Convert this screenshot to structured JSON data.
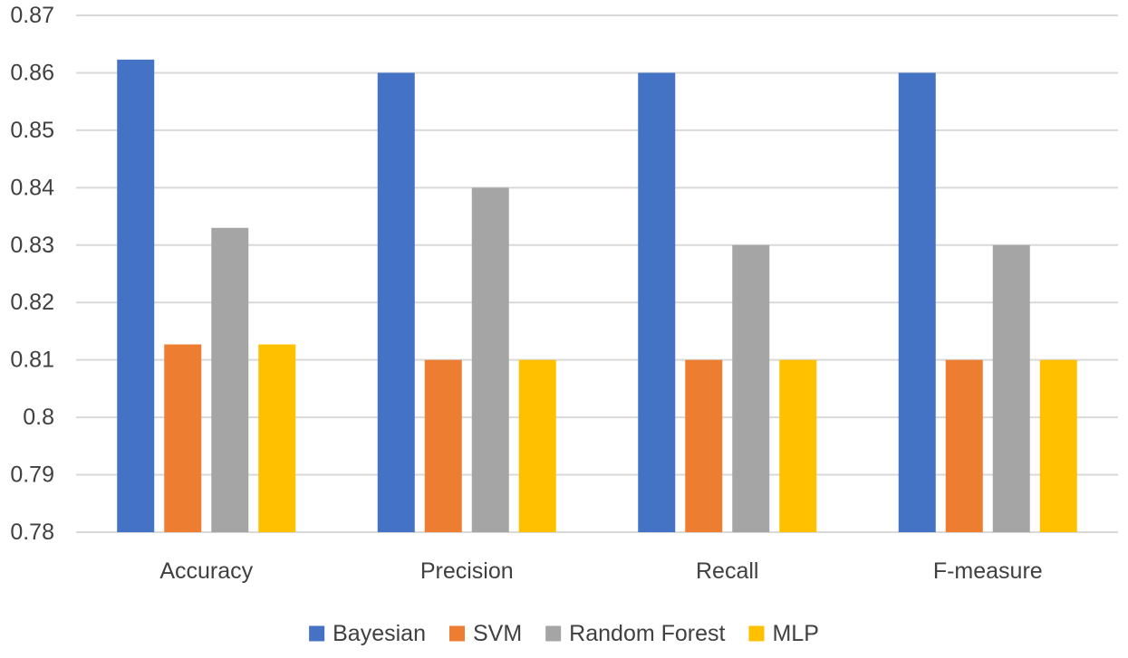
{
  "chart_data": {
    "type": "bar",
    "title": "",
    "xlabel": "",
    "ylabel": "",
    "categories": [
      "Accuracy",
      "Precision",
      "Recall",
      "F-measure"
    ],
    "series": [
      {
        "name": "Bayesian",
        "color": "#4472c4",
        "values": [
          0.8623,
          0.86,
          0.86,
          0.86
        ]
      },
      {
        "name": "SVM",
        "color": "#ed7d31",
        "values": [
          0.8127,
          0.81,
          0.81,
          0.81
        ]
      },
      {
        "name": "Random Forest",
        "color": "#a5a5a5",
        "values": [
          0.833,
          0.84,
          0.83,
          0.83
        ]
      },
      {
        "name": "MLP",
        "color": "#ffc000",
        "values": [
          0.8127,
          0.81,
          0.81,
          0.81
        ]
      }
    ],
    "ylim": [
      0.78,
      0.87
    ],
    "yticks": [
      "0.78",
      "0.79",
      "0.8",
      "0.81",
      "0.82",
      "0.83",
      "0.84",
      "0.85",
      "0.86",
      "0.87"
    ],
    "grid": true,
    "legend_position": "bottom"
  }
}
